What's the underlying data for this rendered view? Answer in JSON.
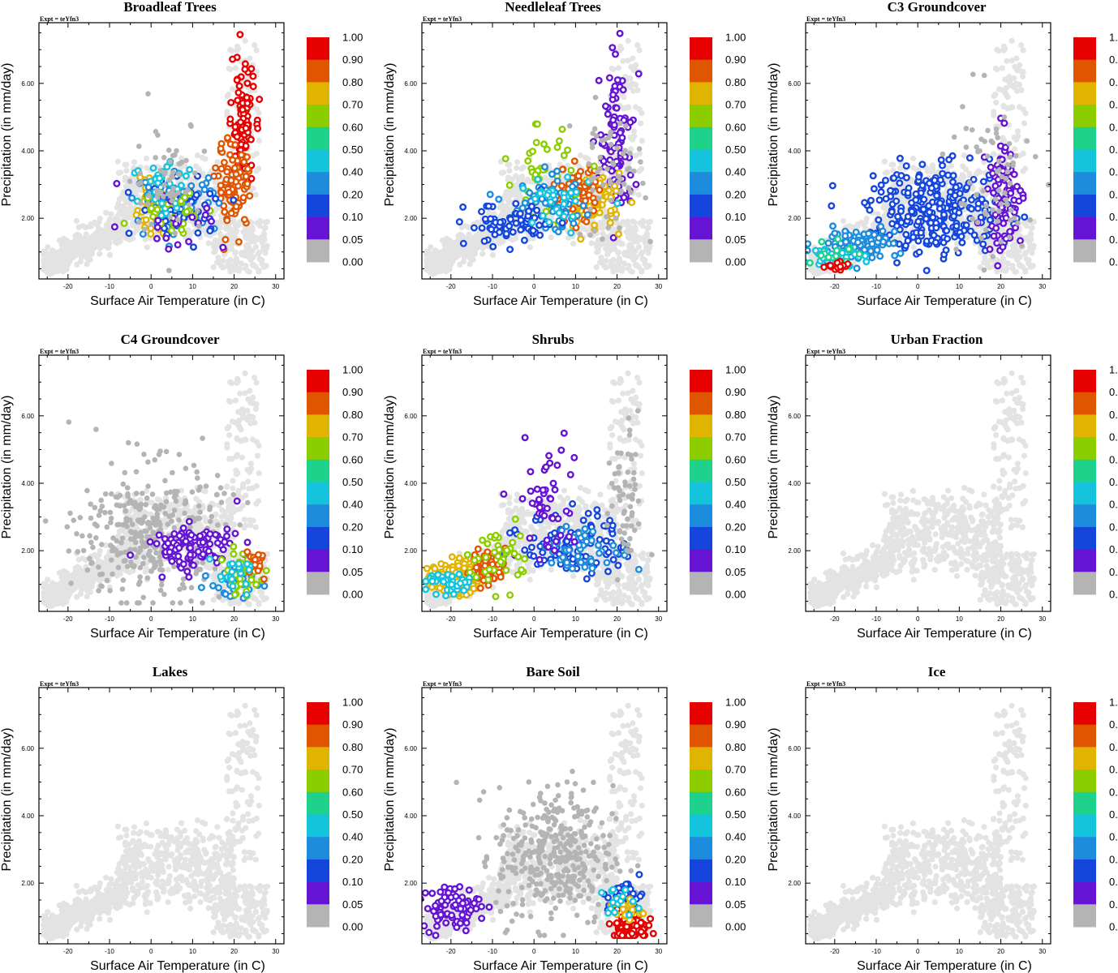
{
  "chart_data": {
    "type": "scatter",
    "expt_label": "Expt = teYfn3",
    "xlabel": "Surface Air Temperature (in C)",
    "ylabel": "Precipitation (in mm/day)",
    "xlim": [
      -27,
      32
    ],
    "ylim": [
      0.2,
      7.8
    ],
    "xticks": [
      -20,
      -10,
      0,
      10,
      20,
      30
    ],
    "xtick_labels": [
      "-20",
      "-10",
      "0",
      "10",
      "20",
      "30"
    ],
    "yticks": [
      2,
      4,
      6
    ],
    "ytick_labels": [
      "2.00",
      "4.00",
      "6.00"
    ],
    "colorbar": {
      "labels": [
        "1.00",
        "0.90",
        "0.80",
        "0.70",
        "0.60",
        "0.50",
        "0.40",
        "0.20",
        "0.10",
        "0.05",
        "0.00"
      ],
      "colors": [
        "#e60000",
        "#e05500",
        "#e0b400",
        "#8ccd00",
        "#1ed28c",
        "#14c3dc",
        "#1e8cdc",
        "#1446dc",
        "#6414d2",
        "#b4b4b4"
      ]
    },
    "zero_color": "#b4b4b4",
    "background_color": "#e3e3e3",
    "panels": [
      {
        "title": "Broadleaf Trees",
        "groups": [
          {
            "color": "#e60000",
            "cx": 22,
            "cy": 4.6,
            "sx": 2.0,
            "sy": 1.2,
            "n": 110
          },
          {
            "color": "#e05500",
            "cx": 20,
            "cy": 3.0,
            "sx": 3.0,
            "sy": 0.8,
            "n": 90
          },
          {
            "color": "#e0b400",
            "cx": 1,
            "cy": 2.3,
            "sx": 3.5,
            "sy": 0.4,
            "n": 100
          },
          {
            "color": "#1e8cdc",
            "cx": 6,
            "cy": 2.5,
            "sx": 7.0,
            "sy": 0.5,
            "n": 70
          },
          {
            "color": "#1446dc",
            "cx": 8,
            "cy": 2.4,
            "sx": 8.0,
            "sy": 0.6,
            "n": 45
          },
          {
            "color": "#14c3dc",
            "cx": 4,
            "cy": 2.8,
            "sx": 6.0,
            "sy": 0.8,
            "n": 35
          },
          {
            "color": "#8ccd00",
            "cx": 6,
            "cy": 2.2,
            "sx": 7.0,
            "sy": 0.4,
            "n": 25
          },
          {
            "color": "#6414d2",
            "cx": 5,
            "cy": 2.0,
            "sx": 9.0,
            "sy": 0.6,
            "n": 20
          },
          {
            "color": "#b4b4b4",
            "cx": 4,
            "cy": 3.2,
            "sx": 6.0,
            "sy": 1.1,
            "n": 60
          }
        ]
      },
      {
        "title": "Needleleaf Trees",
        "groups": [
          {
            "color": "#6414d2",
            "cx": 20,
            "cy": 4.2,
            "sx": 3.0,
            "sy": 1.5,
            "n": 90
          },
          {
            "color": "#e0b400",
            "cx": 14,
            "cy": 2.5,
            "sx": 5.0,
            "sy": 0.5,
            "n": 90
          },
          {
            "color": "#e05500",
            "cx": 10,
            "cy": 2.7,
            "sx": 4.0,
            "sy": 0.5,
            "n": 70
          },
          {
            "color": "#8ccd00",
            "cx": 2,
            "cy": 3.3,
            "sx": 5.0,
            "sy": 0.9,
            "n": 40
          },
          {
            "color": "#1e8cdc",
            "cx": 4,
            "cy": 2.4,
            "sx": 7.0,
            "sy": 0.5,
            "n": 60
          },
          {
            "color": "#1446dc",
            "cx": -5,
            "cy": 1.8,
            "sx": 8.0,
            "sy": 0.4,
            "n": 70
          },
          {
            "color": "#14c3dc",
            "cx": 5,
            "cy": 2.4,
            "sx": 6.0,
            "sy": 0.6,
            "n": 30
          },
          {
            "color": "#b4b4b4",
            "cx": 18,
            "cy": 3.3,
            "sx": 6.0,
            "sy": 1.2,
            "n": 60
          }
        ]
      },
      {
        "title": "C3 Groundcover",
        "groups": [
          {
            "color": "#1446dc",
            "cx": 5,
            "cy": 2.2,
            "sx": 12.0,
            "sy": 0.8,
            "n": 270
          },
          {
            "color": "#6414d2",
            "cx": 21,
            "cy": 2.7,
            "sx": 3.0,
            "sy": 1.1,
            "n": 80
          },
          {
            "color": "#1e8cdc",
            "cx": -15,
            "cy": 1.2,
            "sx": 7.0,
            "sy": 0.3,
            "n": 90
          },
          {
            "color": "#14c3dc",
            "cx": -20,
            "cy": 0.9,
            "sx": 4.0,
            "sy": 0.2,
            "n": 40
          },
          {
            "color": "#1ed28c",
            "cx": -21,
            "cy": 1.0,
            "sx": 4.0,
            "sy": 0.3,
            "n": 15
          },
          {
            "color": "#e60000",
            "cx": -20,
            "cy": 0.6,
            "sx": 3.0,
            "sy": 0.1,
            "n": 15
          },
          {
            "color": "#b4b4b4",
            "cx": 17,
            "cy": 3.0,
            "sx": 8.0,
            "sy": 1.8,
            "n": 70
          }
        ]
      },
      {
        "title": "C4 Groundcover",
        "groups": [
          {
            "color": "#b4b4b4",
            "cx": 0,
            "cy": 2.5,
            "sx": 12.0,
            "sy": 1.3,
            "n": 330
          },
          {
            "color": "#6414d2",
            "cx": 10,
            "cy": 2.1,
            "sx": 8.0,
            "sy": 0.4,
            "n": 110
          },
          {
            "color": "#1e8cdc",
            "cx": 20,
            "cy": 1.0,
            "sx": 4.0,
            "sy": 0.3,
            "n": 40
          },
          {
            "color": "#8ccd00",
            "cx": 22,
            "cy": 1.3,
            "sx": 3.0,
            "sy": 0.4,
            "n": 35
          },
          {
            "color": "#e05500",
            "cx": 25,
            "cy": 1.7,
            "sx": 2.0,
            "sy": 0.3,
            "n": 20
          },
          {
            "color": "#14c3dc",
            "cx": 20,
            "cy": 1.2,
            "sx": 4.0,
            "sy": 0.3,
            "n": 20
          }
        ]
      },
      {
        "title": "Shrubs",
        "groups": [
          {
            "color": "#e0b400",
            "cx": -19,
            "cy": 1.2,
            "sx": 4.0,
            "sy": 0.3,
            "n": 170
          },
          {
            "color": "#e05500",
            "cx": -11,
            "cy": 1.5,
            "sx": 3.0,
            "sy": 0.3,
            "n": 70
          },
          {
            "color": "#1446dc",
            "cx": 10,
            "cy": 2.2,
            "sx": 9.0,
            "sy": 0.6,
            "n": 100
          },
          {
            "color": "#1e8cdc",
            "cx": 12,
            "cy": 2.0,
            "sx": 8.0,
            "sy": 0.4,
            "n": 50
          },
          {
            "color": "#6414d2",
            "cx": 3,
            "cy": 3.5,
            "sx": 5.0,
            "sy": 1.2,
            "n": 50
          },
          {
            "color": "#8ccd00",
            "cx": -8,
            "cy": 1.8,
            "sx": 6.0,
            "sy": 0.6,
            "n": 40
          },
          {
            "color": "#14c3dc",
            "cx": -20,
            "cy": 1.0,
            "sx": 4.0,
            "sy": 0.2,
            "n": 40
          },
          {
            "color": "#b4b4b4",
            "cx": 22,
            "cy": 3.5,
            "sx": 3.0,
            "sy": 1.5,
            "n": 60
          }
        ]
      },
      {
        "title": "Urban Fraction",
        "groups": []
      },
      {
        "title": "Lakes",
        "groups": []
      },
      {
        "title": "Bare Soil",
        "groups": [
          {
            "color": "#b4b4b4",
            "cx": 5,
            "cy": 2.8,
            "sx": 10.0,
            "sy": 1.3,
            "n": 360
          },
          {
            "color": "#e60000",
            "cx": 23,
            "cy": 0.7,
            "sx": 3.0,
            "sy": 0.3,
            "n": 130
          },
          {
            "color": "#6414d2",
            "cx": -20,
            "cy": 1.3,
            "sx": 5.0,
            "sy": 0.4,
            "n": 75
          },
          {
            "color": "#1446dc",
            "cx": 22,
            "cy": 1.6,
            "sx": 3.0,
            "sy": 0.3,
            "n": 40
          },
          {
            "color": "#e0b400",
            "cx": 22,
            "cy": 1.2,
            "sx": 3.0,
            "sy": 0.2,
            "n": 20
          },
          {
            "color": "#14c3dc",
            "cx": 20,
            "cy": 1.4,
            "sx": 3.0,
            "sy": 0.3,
            "n": 15
          }
        ]
      },
      {
        "title": "Ice",
        "groups": []
      }
    ]
  }
}
